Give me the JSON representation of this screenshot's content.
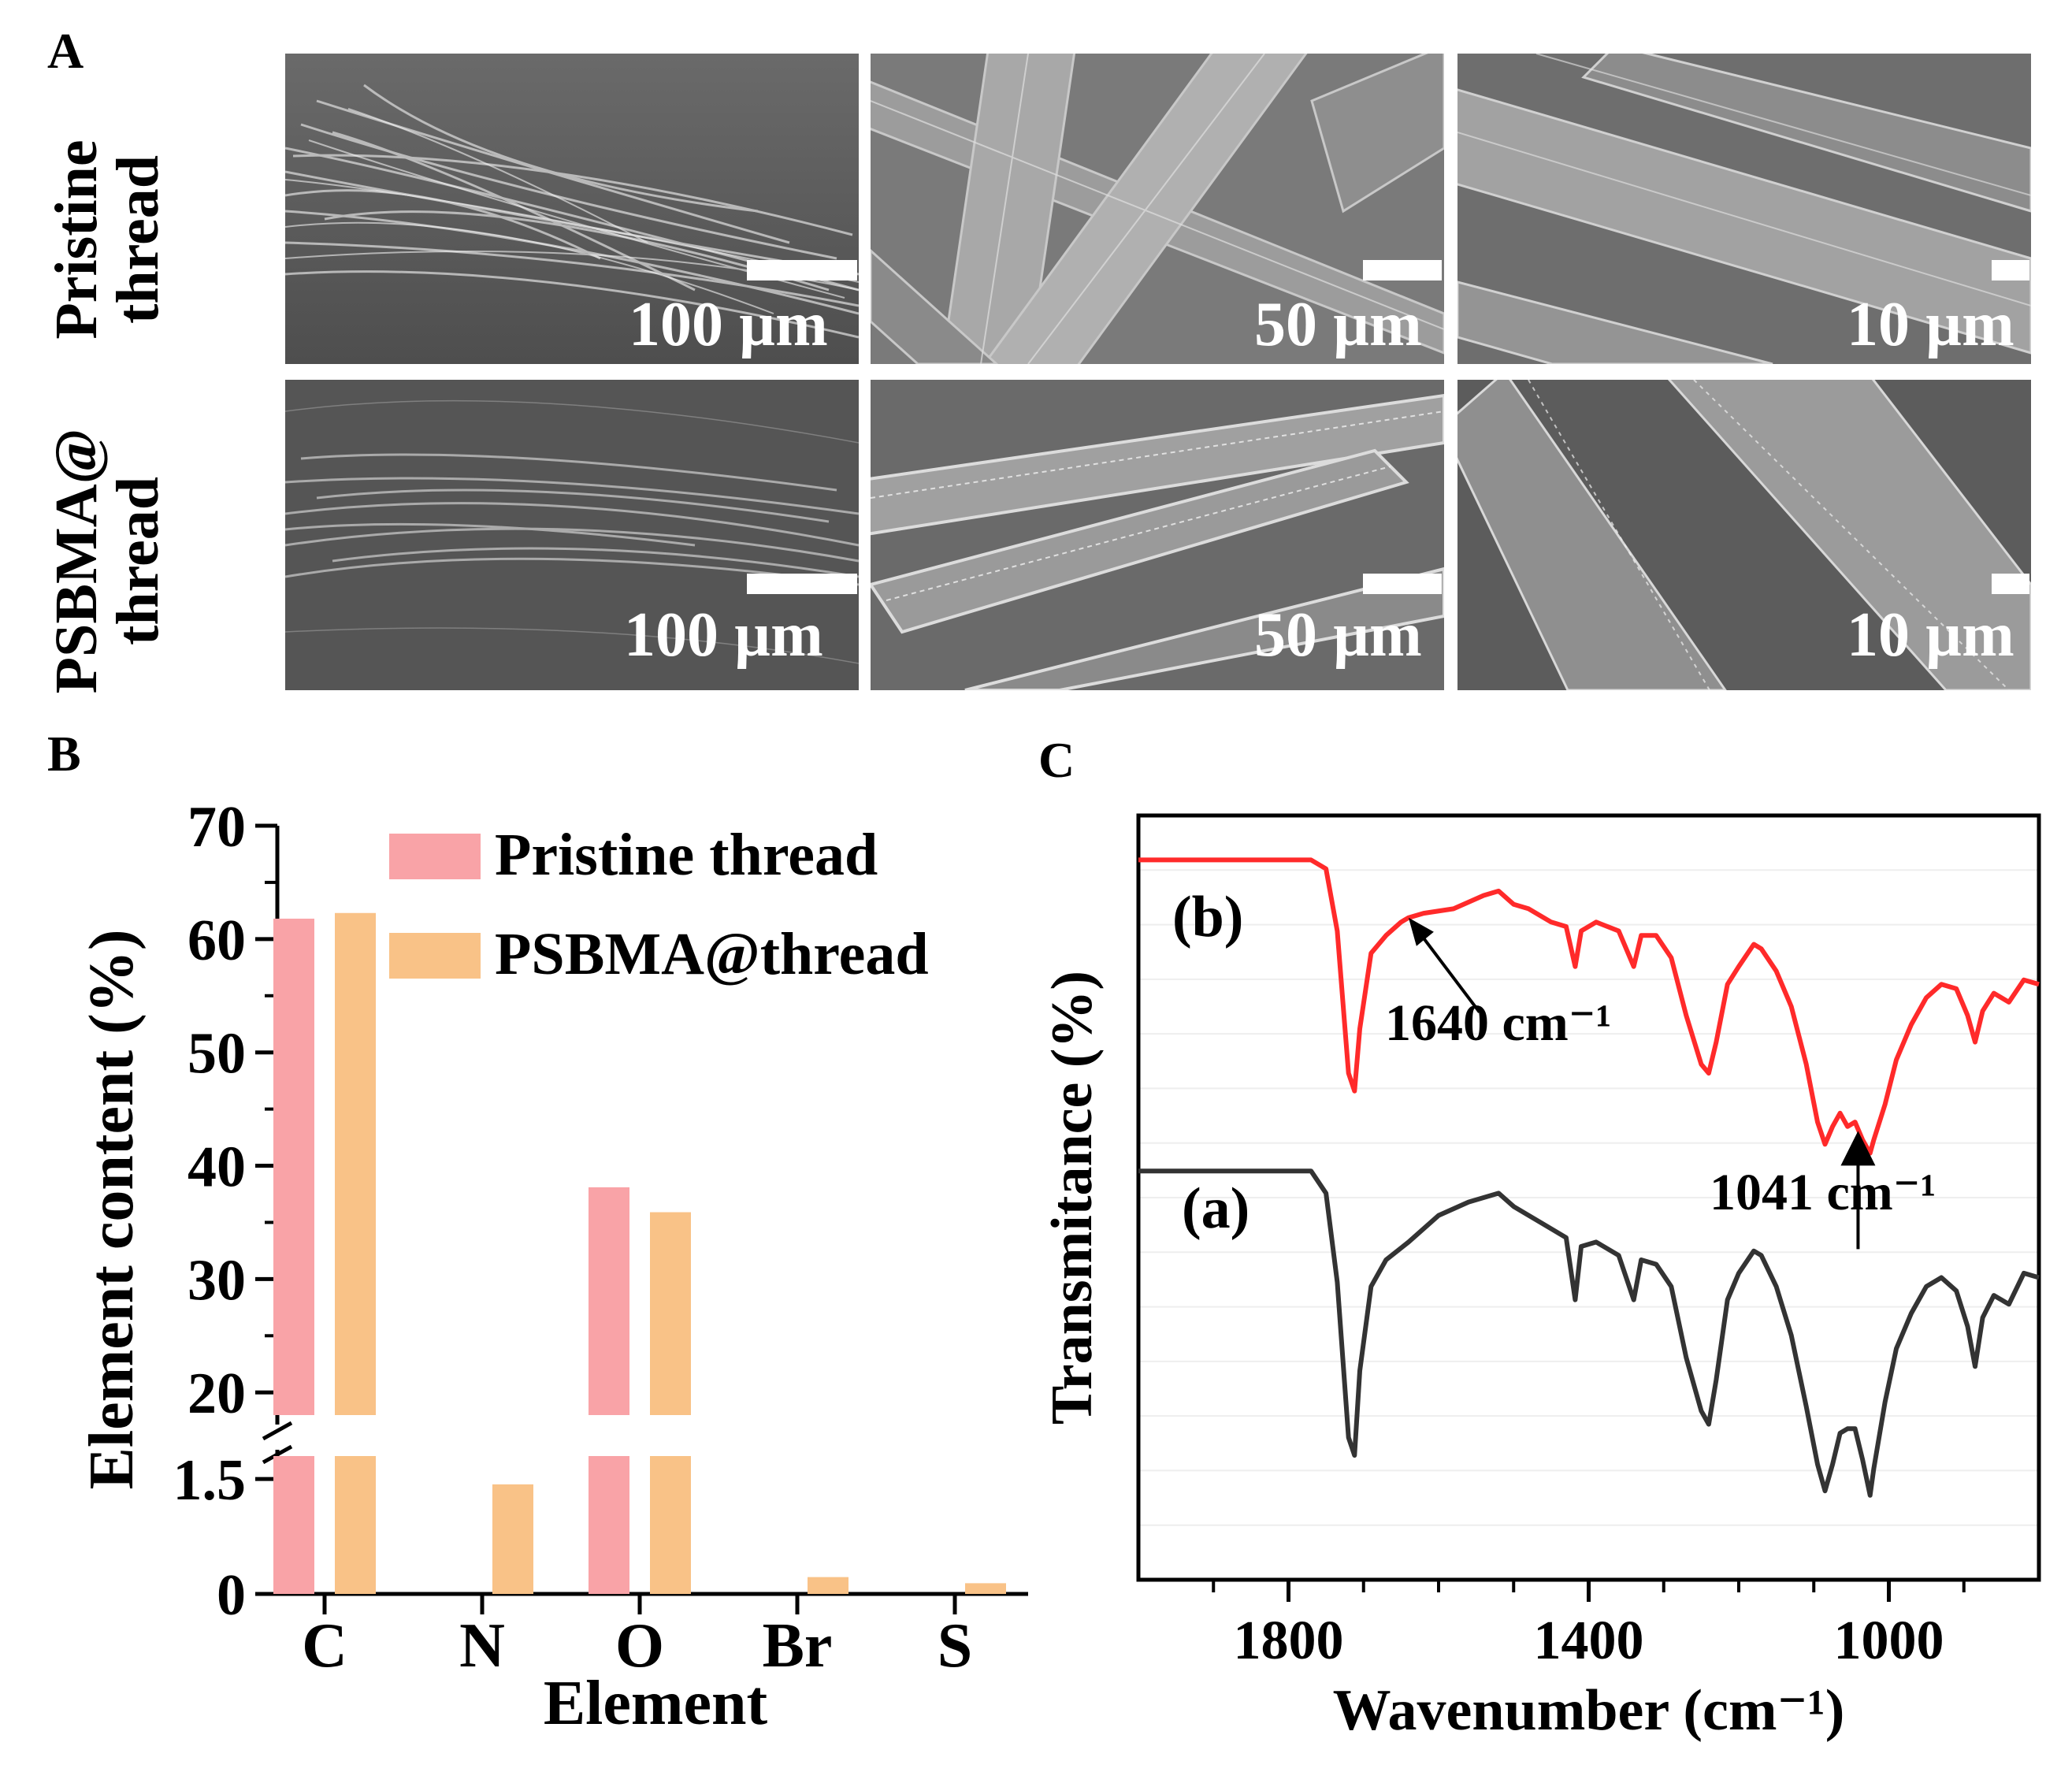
{
  "panel_labels": [
    "A",
    "B",
    "C"
  ],
  "sem": {
    "rows": [
      {
        "label_line1": "Pristine",
        "label_line2": "thread",
        "scales": [
          "100 µm",
          "50 µm",
          "10 µm"
        ]
      },
      {
        "label_line1": "PSBMA@",
        "label_line2": "thread",
        "scales": [
          "100 µm",
          "50 µm",
          "10 µm"
        ]
      }
    ]
  },
  "chart_data": [
    {
      "type": "bar",
      "panel": "B",
      "xlabel": "Element",
      "ylabel": "Element content  (%)",
      "categories": [
        "C",
        "N",
        "O",
        "Br",
        "S"
      ],
      "series": [
        {
          "name": "Pristine thread",
          "color": "#f9a3a7",
          "values": [
            61.8,
            0,
            38.1,
            0,
            0
          ]
        },
        {
          "name": "PSBMA@thread",
          "color": "#f9c287",
          "values": [
            62.3,
            1.43,
            35.9,
            0.22,
            0.14
          ]
        }
      ],
      "axis_break": {
        "lower": [
          0,
          1.8
        ],
        "upper": [
          18,
          70
        ]
      },
      "yticks": [
        "0",
        "1.5",
        "20",
        "30",
        "40",
        "50",
        "60",
        "70"
      ],
      "legend_position": "top-right"
    },
    {
      "type": "line",
      "panel": "C",
      "xlabel": "Wavenumber (cm⁻¹)",
      "ylabel": "Transmitance (%)",
      "xlim": [
        2000,
        800
      ],
      "xticks": [
        "1800",
        "1400",
        "1000"
      ],
      "series": [
        {
          "name": "(b)",
          "color": "#ff2a2a",
          "points": [
            [
              2000,
              0.9
            ],
            [
              1770,
              0.9
            ],
            [
              1750,
              0.88
            ],
            [
              1735,
              0.74
            ],
            [
              1720,
              0.42
            ],
            [
              1712,
              0.38
            ],
            [
              1705,
              0.52
            ],
            [
              1690,
              0.69
            ],
            [
              1670,
              0.73
            ],
            [
              1650,
              0.76
            ],
            [
              1640,
              0.77
            ],
            [
              1620,
              0.78
            ],
            [
              1580,
              0.79
            ],
            [
              1540,
              0.82
            ],
            [
              1520,
              0.83
            ],
            [
              1500,
              0.8
            ],
            [
              1480,
              0.79
            ],
            [
              1450,
              0.76
            ],
            [
              1430,
              0.75
            ],
            [
              1418,
              0.66
            ],
            [
              1410,
              0.74
            ],
            [
              1390,
              0.76
            ],
            [
              1360,
              0.74
            ],
            [
              1340,
              0.66
            ],
            [
              1330,
              0.73
            ],
            [
              1310,
              0.73
            ],
            [
              1290,
              0.68
            ],
            [
              1270,
              0.55
            ],
            [
              1250,
              0.44
            ],
            [
              1240,
              0.42
            ],
            [
              1230,
              0.49
            ],
            [
              1215,
              0.62
            ],
            [
              1200,
              0.66
            ],
            [
              1180,
              0.71
            ],
            [
              1170,
              0.7
            ],
            [
              1150,
              0.65
            ],
            [
              1130,
              0.57
            ],
            [
              1110,
              0.44
            ],
            [
              1095,
              0.31
            ],
            [
              1085,
              0.26
            ],
            [
              1075,
              0.3
            ],
            [
              1065,
              0.33
            ],
            [
              1055,
              0.3
            ],
            [
              1045,
              0.31
            ],
            [
              1035,
              0.27
            ],
            [
              1025,
              0.24
            ],
            [
              1020,
              0.27
            ],
            [
              1005,
              0.35
            ],
            [
              990,
              0.45
            ],
            [
              970,
              0.53
            ],
            [
              950,
              0.59
            ],
            [
              930,
              0.62
            ],
            [
              910,
              0.61
            ],
            [
              895,
              0.55
            ],
            [
              885,
              0.49
            ],
            [
              875,
              0.56
            ],
            [
              860,
              0.6
            ],
            [
              840,
              0.58
            ],
            [
              820,
              0.63
            ],
            [
              800,
              0.62
            ]
          ],
          "label_position": "upper-left"
        },
        {
          "name": "(a)",
          "color": "#333333",
          "points": [
            [
              2000,
              0.2
            ],
            [
              1770,
              0.2
            ],
            [
              1750,
              0.15
            ],
            [
              1735,
              -0.05
            ],
            [
              1720,
              -0.4
            ],
            [
              1712,
              -0.44
            ],
            [
              1705,
              -0.25
            ],
            [
              1690,
              -0.06
            ],
            [
              1670,
              0.0
            ],
            [
              1640,
              0.04
            ],
            [
              1600,
              0.1
            ],
            [
              1560,
              0.13
            ],
            [
              1520,
              0.15
            ],
            [
              1500,
              0.12
            ],
            [
              1460,
              0.08
            ],
            [
              1430,
              0.05
            ],
            [
              1418,
              -0.09
            ],
            [
              1410,
              0.03
            ],
            [
              1390,
              0.04
            ],
            [
              1360,
              0.01
            ],
            [
              1340,
              -0.09
            ],
            [
              1330,
              0.0
            ],
            [
              1310,
              -0.01
            ],
            [
              1290,
              -0.06
            ],
            [
              1270,
              -0.22
            ],
            [
              1250,
              -0.34
            ],
            [
              1240,
              -0.37
            ],
            [
              1230,
              -0.27
            ],
            [
              1215,
              -0.09
            ],
            [
              1200,
              -0.03
            ],
            [
              1180,
              0.02
            ],
            [
              1170,
              0.01
            ],
            [
              1150,
              -0.06
            ],
            [
              1130,
              -0.17
            ],
            [
              1110,
              -0.33
            ],
            [
              1095,
              -0.46
            ],
            [
              1085,
              -0.52
            ],
            [
              1075,
              -0.46
            ],
            [
              1065,
              -0.39
            ],
            [
              1055,
              -0.38
            ],
            [
              1045,
              -0.38
            ],
            [
              1035,
              -0.45
            ],
            [
              1025,
              -0.53
            ],
            [
              1020,
              -0.47
            ],
            [
              1005,
              -0.32
            ],
            [
              990,
              -0.2
            ],
            [
              970,
              -0.12
            ],
            [
              950,
              -0.06
            ],
            [
              930,
              -0.04
            ],
            [
              910,
              -0.07
            ],
            [
              895,
              -0.15
            ],
            [
              885,
              -0.24
            ],
            [
              875,
              -0.13
            ],
            [
              860,
              -0.08
            ],
            [
              840,
              -0.1
            ],
            [
              820,
              -0.03
            ],
            [
              800,
              -0.04
            ]
          ],
          "label_position": "left"
        }
      ],
      "annotations": [
        {
          "text": "1640 cm⁻¹",
          "wavenumber": 1640
        },
        {
          "text": "1041 cm⁻¹",
          "wavenumber": 1041
        }
      ]
    }
  ]
}
